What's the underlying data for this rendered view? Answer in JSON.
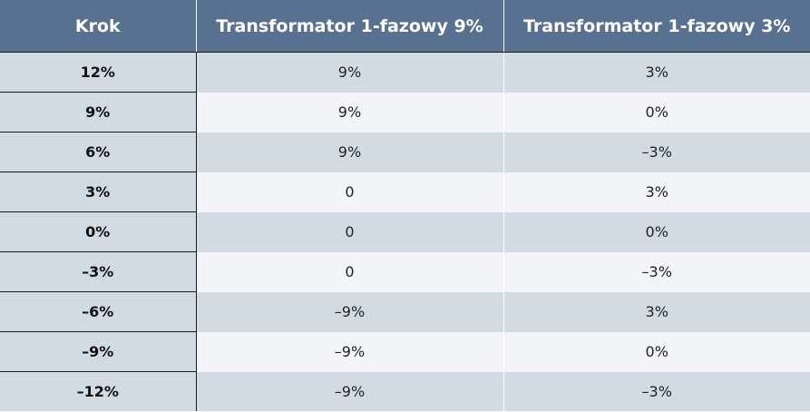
{
  "table": {
    "headers": [
      "Krok",
      "Transformator 1-fazowy 9%",
      "Transformator 1-fazowy 3%"
    ],
    "rows": [
      [
        "12%",
        "9%",
        "3%"
      ],
      [
        "9%",
        "9%",
        "0%"
      ],
      [
        "6%",
        "9%",
        "–3%"
      ],
      [
        "3%",
        "0",
        "3%"
      ],
      [
        "0%",
        "0",
        "0%"
      ],
      [
        "–3%",
        "0",
        "–3%"
      ],
      [
        "–6%",
        "–9%",
        "3%"
      ],
      [
        "–9%",
        "–9%",
        "0%"
      ],
      [
        "–12%",
        "–9%",
        "–3%"
      ]
    ]
  }
}
